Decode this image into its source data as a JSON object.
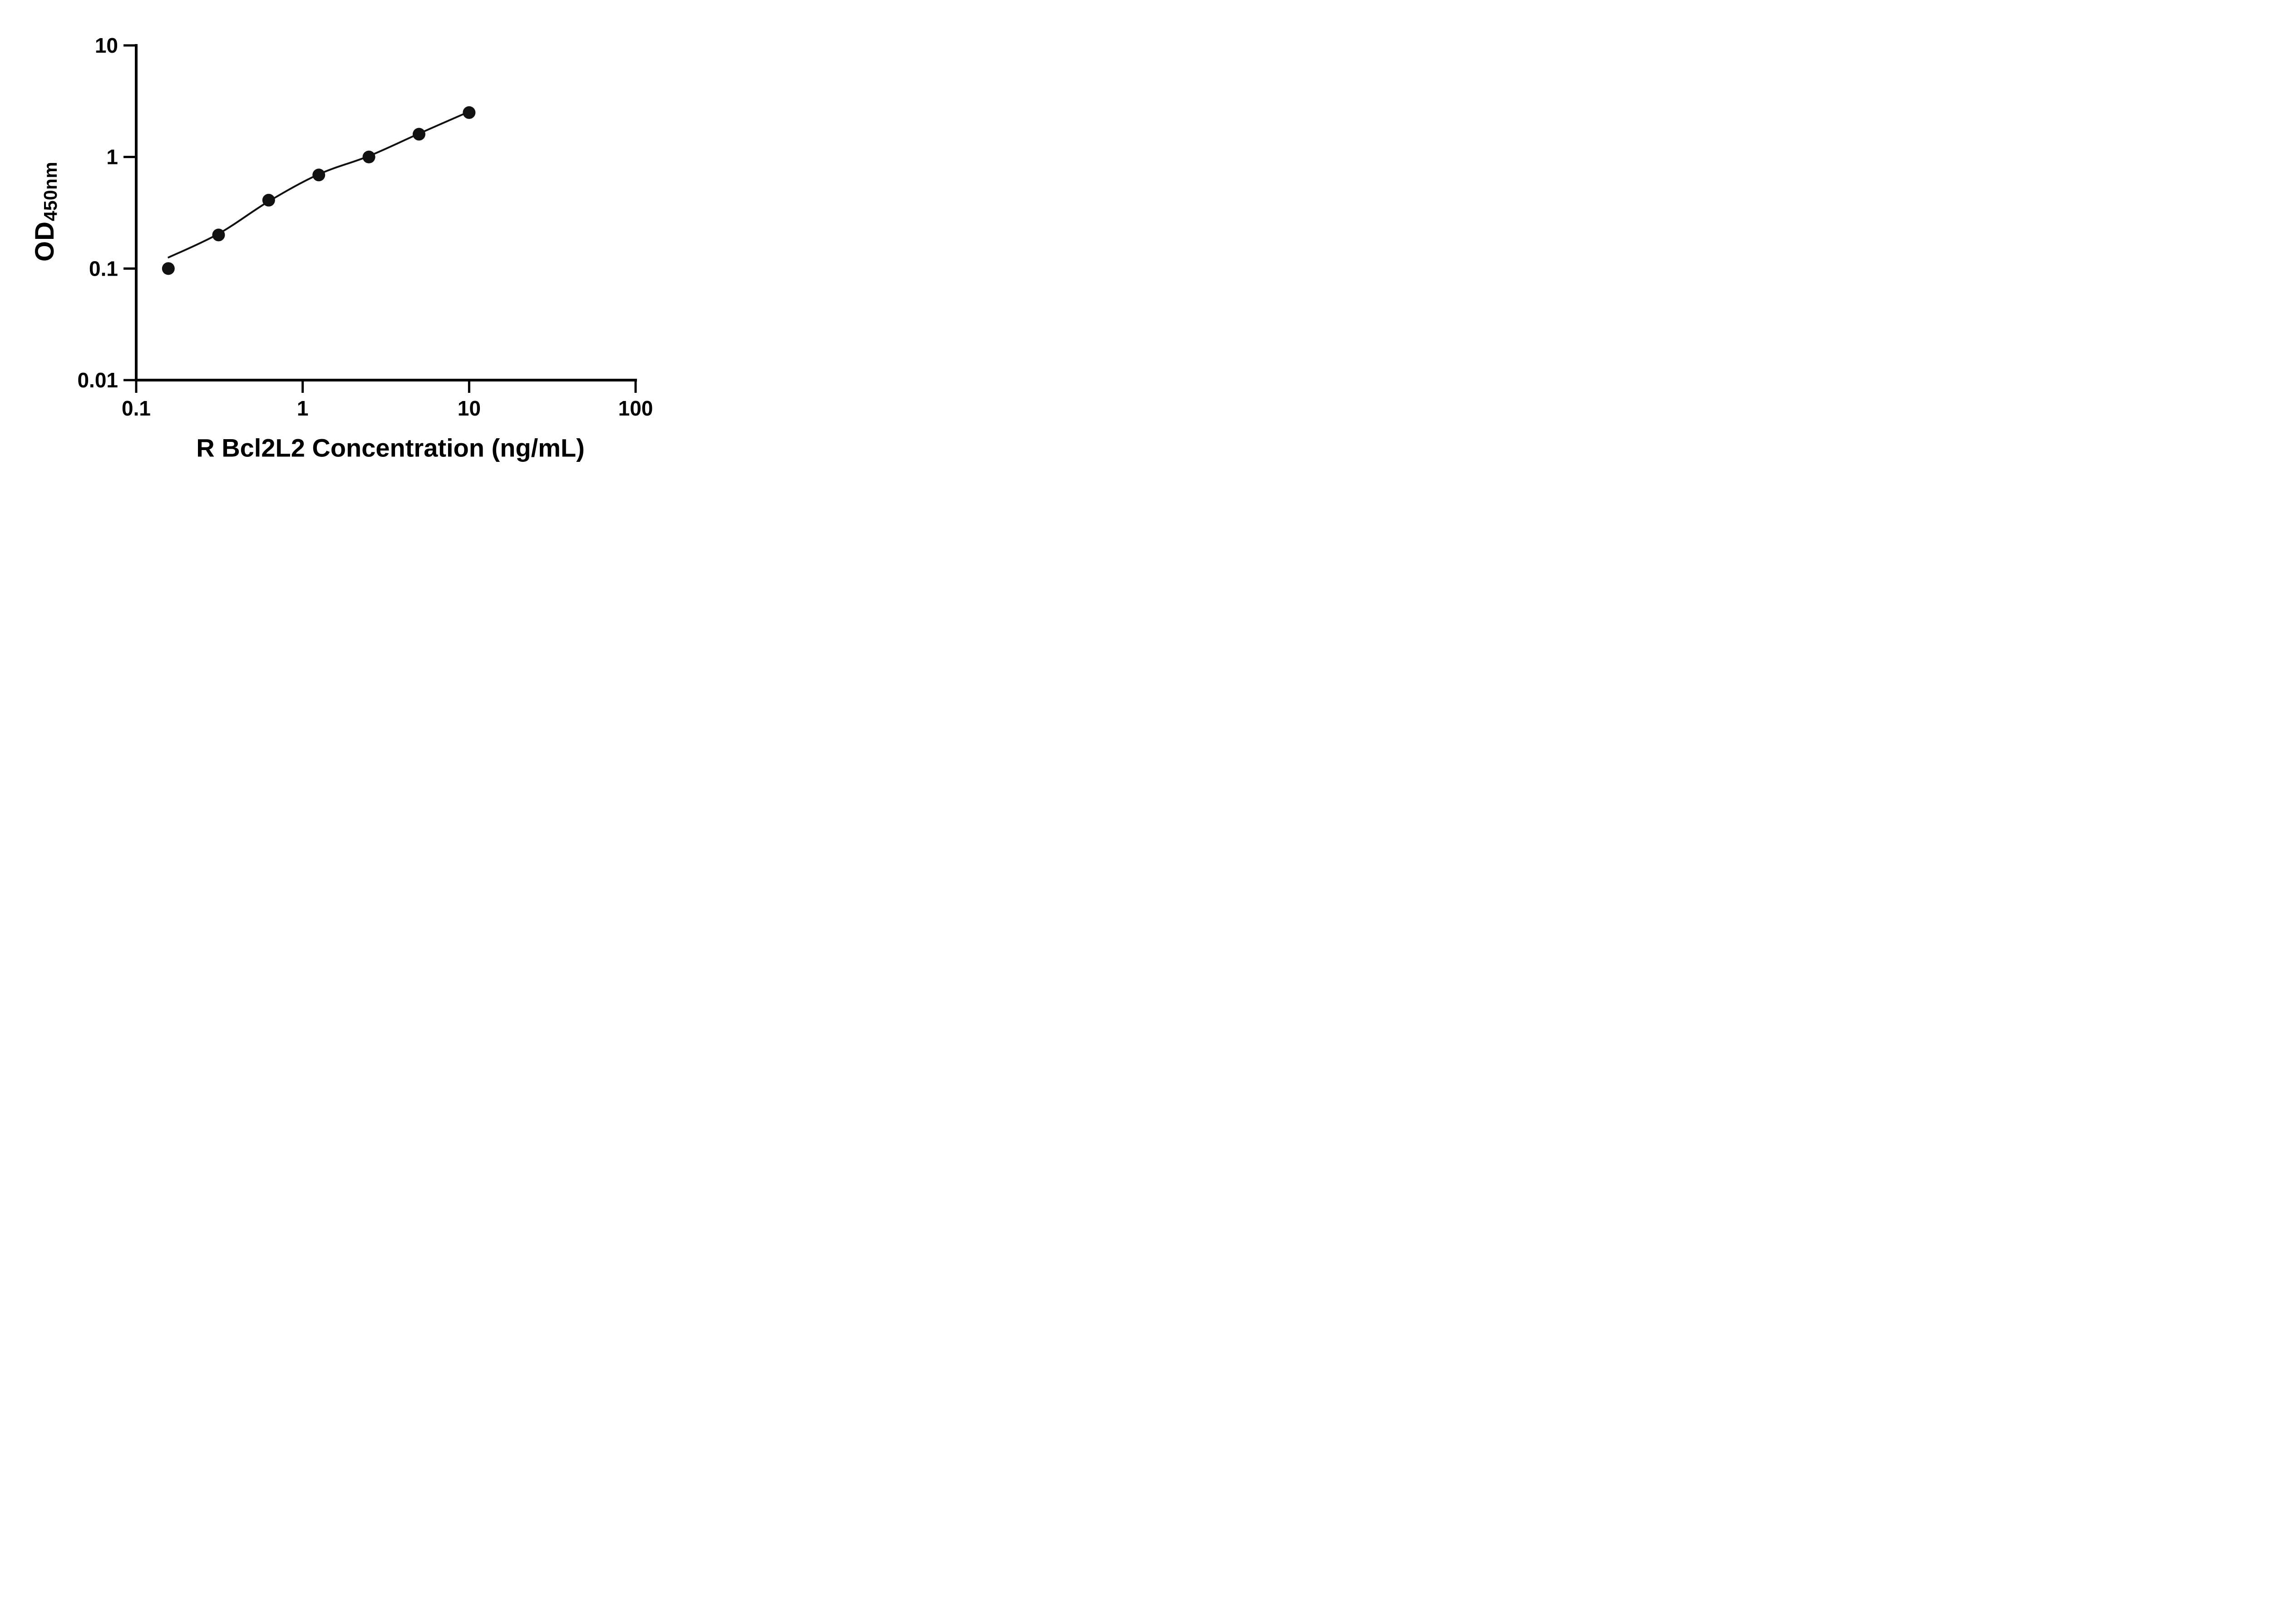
{
  "chart_data": {
    "type": "scatter",
    "title": "",
    "xlabel": "R Bcl2L2 Concentration (ng/mL)",
    "ylabel_main": "OD",
    "ylabel_sub": "450nm",
    "x_scale": "log",
    "y_scale": "log",
    "xlim": [
      0.1,
      100
    ],
    "ylim": [
      0.01,
      10
    ],
    "x_ticks": [
      0.1,
      1,
      10,
      100
    ],
    "x_tick_labels": [
      "0.1",
      "1",
      "10",
      "100"
    ],
    "y_ticks": [
      0.01,
      0.1,
      1,
      10
    ],
    "y_tick_labels": [
      "0.01",
      "0.1",
      "1",
      "10"
    ],
    "grid": false,
    "legend": "none",
    "points": {
      "x": [
        0.156,
        0.3125,
        0.625,
        1.25,
        2.5,
        5,
        10
      ],
      "y": [
        0.1,
        0.2,
        0.41,
        0.69,
        1.0,
        1.6,
        2.5
      ]
    },
    "trend_line": {
      "x": [
        0.155,
        0.3125,
        0.625,
        1.25,
        2.5,
        5,
        10
      ],
      "y": [
        0.125,
        0.205,
        0.4,
        0.7,
        1.02,
        1.62,
        2.55
      ]
    },
    "marker_color": "#111111",
    "line_color": "#111111",
    "axis_color": "#000000"
  }
}
